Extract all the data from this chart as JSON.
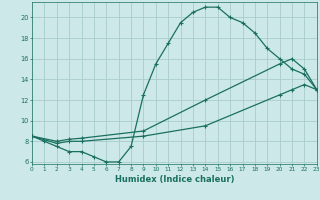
{
  "xlabel": "Humidex (Indice chaleur)",
  "bg_color": "#cce8e8",
  "grid_color": "#aacccc",
  "line_color": "#1a7060",
  "line1_x": [
    0,
    1,
    2,
    3,
    4,
    5,
    6,
    7,
    8,
    9,
    10,
    11,
    12,
    13,
    14,
    15,
    16,
    17,
    18,
    19,
    20,
    21,
    22,
    23
  ],
  "line1_y": [
    8.5,
    8.0,
    7.5,
    7.0,
    7.0,
    6.5,
    6.0,
    6.0,
    7.5,
    12.5,
    15.5,
    17.5,
    19.5,
    20.5,
    21.0,
    21.0,
    20.0,
    19.5,
    18.5,
    17.0,
    16.0,
    15.0,
    14.5,
    13.0
  ],
  "line2_x": [
    0,
    2,
    3,
    4,
    9,
    14,
    20,
    21,
    22,
    23
  ],
  "line2_y": [
    8.5,
    8.0,
    8.2,
    8.3,
    9.0,
    12.0,
    15.5,
    16.0,
    15.0,
    13.0
  ],
  "line3_x": [
    0,
    2,
    3,
    4,
    9,
    14,
    20,
    21,
    22,
    23
  ],
  "line3_y": [
    8.5,
    7.8,
    8.0,
    8.0,
    8.5,
    9.5,
    12.5,
    13.0,
    13.5,
    13.0
  ],
  "xlim": [
    0,
    23
  ],
  "ylim": [
    5.8,
    21.5
  ],
  "yticks": [
    6,
    8,
    10,
    12,
    14,
    16,
    18,
    20
  ],
  "xticks": [
    0,
    1,
    2,
    3,
    4,
    5,
    6,
    7,
    8,
    9,
    10,
    11,
    12,
    13,
    14,
    15,
    16,
    17,
    18,
    19,
    20,
    21,
    22,
    23
  ]
}
